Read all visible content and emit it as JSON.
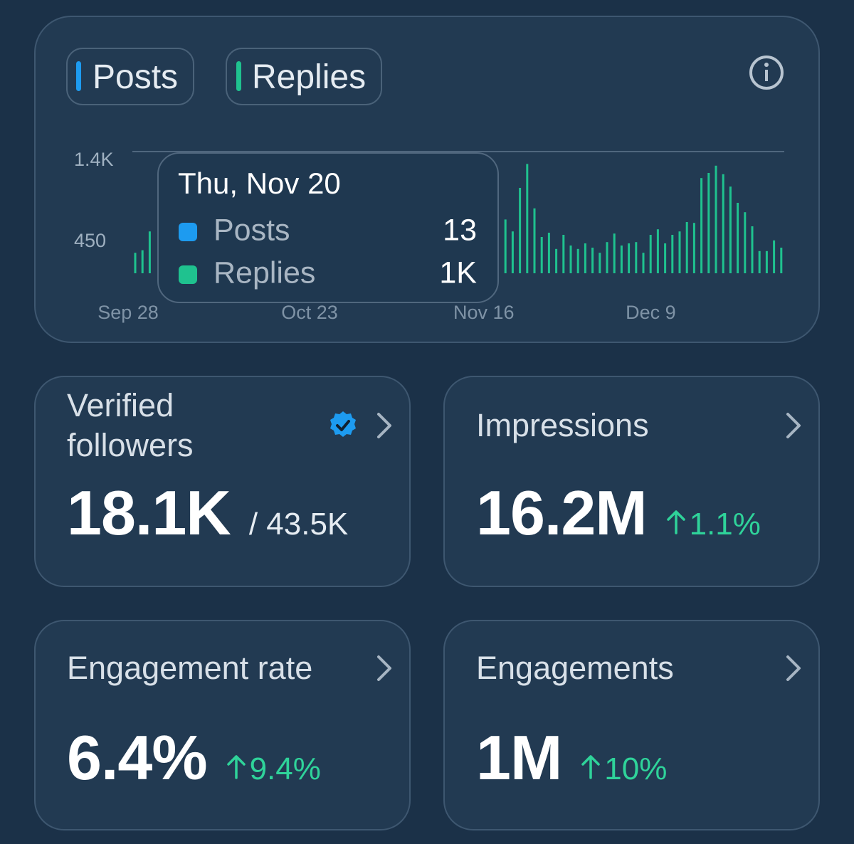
{
  "chart_data": {
    "type": "bar",
    "categories": [
      "Sep 28",
      null,
      null,
      null,
      null,
      null,
      null,
      null,
      null,
      null,
      null,
      null,
      null,
      null,
      null,
      null,
      null,
      null,
      null,
      null,
      null,
      null,
      null,
      null,
      null,
      "Oct 23",
      null,
      null,
      null,
      null,
      null,
      null,
      null,
      null,
      null,
      null,
      null,
      null,
      null,
      null,
      null,
      null,
      null,
      null,
      null,
      null,
      null,
      null,
      null,
      "Nov 16",
      null,
      null,
      null,
      null,
      null,
      null,
      null,
      null,
      null,
      null,
      null,
      null,
      null,
      null,
      null,
      null,
      null,
      null,
      null,
      null,
      null,
      null,
      "Dec 9",
      null,
      null,
      null,
      null,
      null,
      null,
      null,
      null,
      null,
      null,
      null,
      null,
      null,
      null,
      null,
      null,
      null
    ],
    "series": [
      {
        "name": "Posts",
        "color": "#1d9bf0",
        "values": [
          null,
          null,
          null,
          null,
          null,
          null,
          null,
          null,
          null,
          null,
          null,
          null,
          null,
          null,
          null,
          null,
          null,
          null,
          null,
          null,
          null,
          null,
          null,
          null,
          null,
          null,
          null,
          null,
          null,
          null,
          null,
          null,
          null,
          null,
          null,
          null,
          null,
          null,
          null,
          null,
          null,
          null,
          null,
          null,
          null,
          null,
          null,
          null,
          null,
          null,
          null,
          null,
          null,
          null,
          null,
          null,
          null,
          null,
          null,
          null,
          null,
          null,
          null,
          null,
          null,
          null,
          null,
          null,
          null,
          null,
          null,
          null,
          null,
          null,
          null,
          null,
          null,
          null,
          null,
          null,
          null,
          null,
          null,
          null,
          null,
          null,
          null,
          null,
          null,
          null
        ]
      },
      {
        "name": "Replies",
        "color": "#1fc28f",
        "values": [
          240,
          270,
          490,
          null,
          null,
          null,
          null,
          null,
          null,
          null,
          null,
          null,
          null,
          null,
          null,
          null,
          null,
          null,
          null,
          null,
          null,
          null,
          null,
          null,
          null,
          null,
          null,
          null,
          null,
          null,
          null,
          null,
          null,
          null,
          null,
          null,
          null,
          null,
          null,
          null,
          null,
          null,
          null,
          null,
          null,
          null,
          null,
          null,
          null,
          null,
          null,
          630,
          490,
          1000,
          1280,
          760,
          425,
          475,
          285,
          450,
          325,
          285,
          350,
          300,
          240,
          365,
          465,
          325,
          350,
          365,
          240,
          450,
          515,
          350,
          450,
          490,
          600,
          590,
          1115,
          1175,
          1260,
          1160,
          1015,
          825,
          715,
          550,
          260,
          260,
          385,
          300
        ]
      }
    ],
    "ylim": [
      0,
      1400
    ],
    "yticks": [
      {
        "value": 1400,
        "label": "1.4K"
      },
      450
    ],
    "tooltip": {
      "title": "Thu, Nov 20",
      "values": [
        13,
        1000
      ],
      "value_labels": [
        "13",
        "1K"
      ]
    }
  },
  "metrics": [
    {
      "title": "Verified followers",
      "value": "18.1K",
      "total": "/ 43.5K"
    },
    {
      "title": "Impressions",
      "value": "16.2M",
      "change": "1.1%"
    },
    {
      "title": "Engagement rate",
      "value": "6.4%",
      "change": "9.4%"
    },
    {
      "title": "Engagements",
      "value": "1M",
      "change": "10%"
    }
  ]
}
